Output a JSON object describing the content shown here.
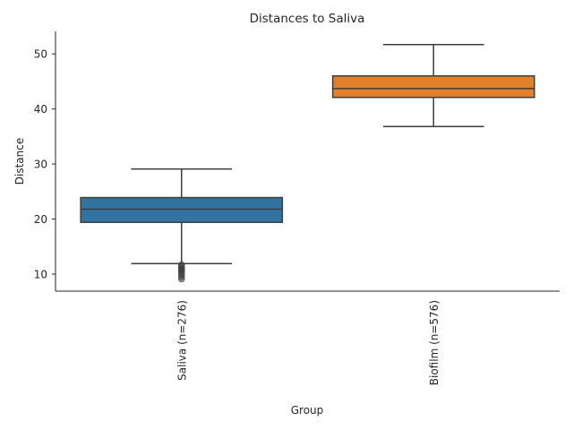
{
  "chart_data": {
    "type": "box",
    "title": "Distances to Saliva",
    "xlabel": "Group",
    "ylabel": "Distance",
    "ylim": [
      6.9,
      54.1
    ],
    "yticks": [
      10,
      20,
      30,
      40,
      50
    ],
    "grid": false,
    "categories": [
      "Saliva (n=276)",
      "Biofilm (n=576)"
    ],
    "boxes": [
      {
        "name": "Saliva (n=276)",
        "color": "#3274a1",
        "whisker_low": 11.9,
        "q1": 19.4,
        "median": 21.8,
        "q3": 23.9,
        "whisker_high": 29.1,
        "outliers": [
          11.7,
          11.4,
          11.1,
          10.9,
          10.6,
          10.3,
          9.9,
          9.5,
          9.1
        ]
      },
      {
        "name": "Biofilm (n=576)",
        "color": "#e1812c",
        "whisker_low": 36.8,
        "q1": 42.1,
        "median": 43.7,
        "q3": 46.0,
        "whisker_high": 51.7,
        "outliers": []
      }
    ]
  }
}
